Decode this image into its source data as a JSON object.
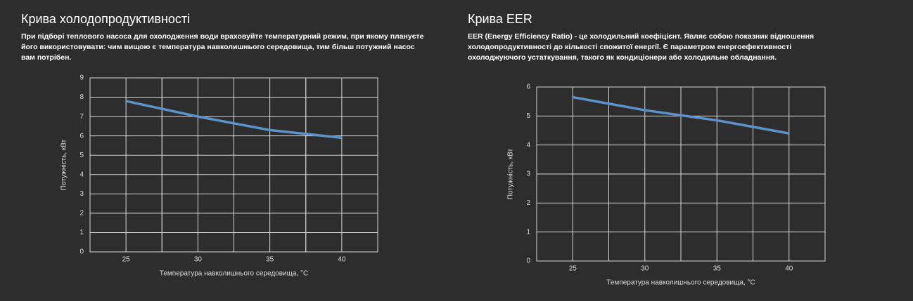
{
  "chart_data": [
    {
      "type": "line",
      "title": "Крива холодопродуктивності",
      "subtitle": "При підборі теплового насоса для охолодження води враховуйте температурний режим, при якому плануєте його використовувати: чим вищою є температура навколишнього середовища, тим більш потужний насос вам потрібен.",
      "x_label": "Температура навколишнього середовища, °C",
      "y_label": "Потужність, кВт",
      "x": [
        25,
        30,
        35,
        40
      ],
      "values": [
        7.8,
        7.0,
        6.3,
        5.9
      ],
      "color": "#5b93c9",
      "xlim": [
        22.5,
        42.5
      ],
      "xticks": [
        25,
        30,
        35,
        40
      ],
      "ylim": [
        0,
        9
      ],
      "yticks": [
        0,
        1,
        2,
        3,
        4,
        5,
        6,
        7,
        8,
        9
      ],
      "grid": true
    },
    {
      "type": "line",
      "title": "Крива EER",
      "subtitle": "EER (Energy Efficiency Ratio) - це холодильний коефіцієнт. Являє собою показник відношення холодопродуктивності до кількості спожитої енергії. Є параметром енергоефективності охолоджуючого устаткування, такого як кондиціонери або холодильне обладнання.",
      "x_label": "Температура навколишнього середовища, °C",
      "y_label": "Потужність, кВт",
      "x": [
        25,
        30,
        35,
        40
      ],
      "values": [
        5.65,
        5.2,
        4.85,
        4.4
      ],
      "color": "#5b93c9",
      "xlim": [
        22.5,
        42.5
      ],
      "xticks": [
        25,
        30,
        35,
        40
      ],
      "ylim": [
        0,
        6
      ],
      "yticks": [
        0,
        1,
        2,
        3,
        4,
        5,
        6
      ],
      "grid": true
    }
  ]
}
